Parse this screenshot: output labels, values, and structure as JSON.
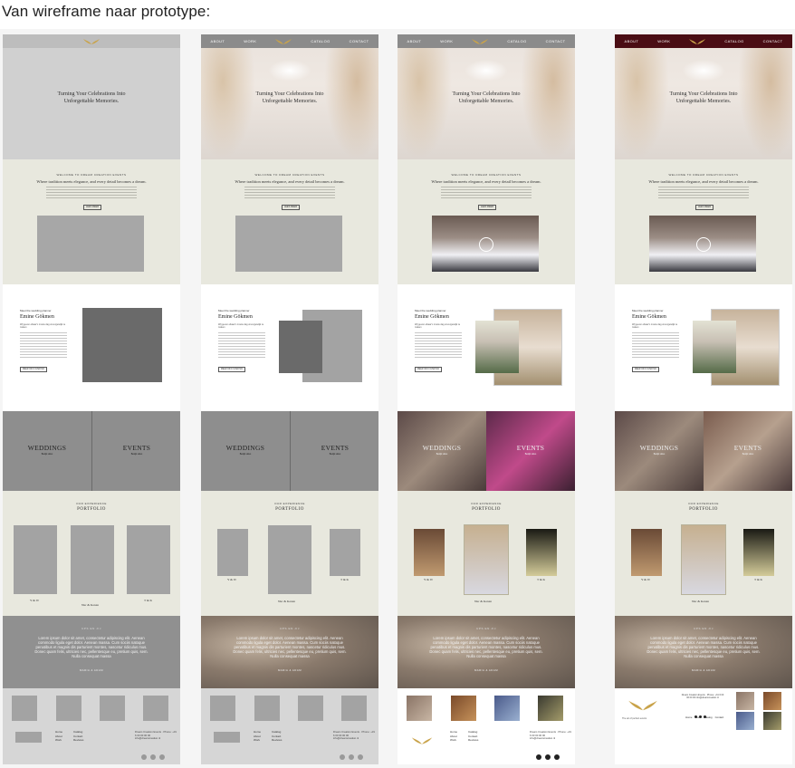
{
  "heading": "Van wireframe naar prototype:",
  "nav": [
    "ABOUT",
    "WORK",
    "CATALOG",
    "CONTACT"
  ],
  "hero_title": [
    "Turning Your Celebrations Into",
    "Unforgettable Memories."
  ],
  "welcome": {
    "eyebrow": "WELCOME TO DREAM CREATION EVENTS",
    "title": "Where tradition meets elegance, and every detail becomes a dream.",
    "button": "LEES MEER"
  },
  "planner": {
    "eyebrow": "Meet the wedding planner",
    "name": "Emine Gökmen",
    "subtitle": "Wij geven elkaar's mooie dag onvergetelijk te maken",
    "button": "MEER INFO OVER MIJ"
  },
  "categories": [
    {
      "label": "WEDDINGS",
      "sub": "Bekijk alles"
    },
    {
      "label": "EVENTS",
      "sub": "Bekijk alles"
    }
  ],
  "portfolio": {
    "eyebrow": "OUR EXPERIENCE",
    "title": "PORTFOLIO",
    "captions": [
      "Y & W",
      "Nur & Kenan",
      "T & K"
    ]
  },
  "quote": {
    "eyebrow": "UPS EN JIJ",
    "text": "Lorem ipsum dolor sit amet, consectetur adipiscing elit. Aenean commodo ligula eget dolor. Aenean massa. Cum sociis natoque penatibus et magnis dis parturient montes, nascetur ridiculus mus. Donec quam felis, ultricies nec, pellentesque eu, pretium quis, sem. Nulla consequat massa",
    "author": "MARIA & ADAM"
  },
  "footer": {
    "links_a": [
      "Home",
      "About",
      "Work"
    ],
    "links_b": [
      "Catalog",
      "Contact",
      "Reviews"
    ],
    "contact": "Dream Creation Events · Phone: +31 6 00 00 00 00 info@dreamcreation.nl",
    "tagline": "The art of perfect events"
  },
  "colors": {
    "welcome_bg": "#e8e8de",
    "wire_hero": "#d0d0d0",
    "wire_cat": "#8e8e8e",
    "wire_quote": "#909090",
    "wire_footer": "#d6d6d6",
    "proto_nav": "#8b8b8b",
    "final_nav": "#4a0d14",
    "gold": "#c9a34a"
  }
}
